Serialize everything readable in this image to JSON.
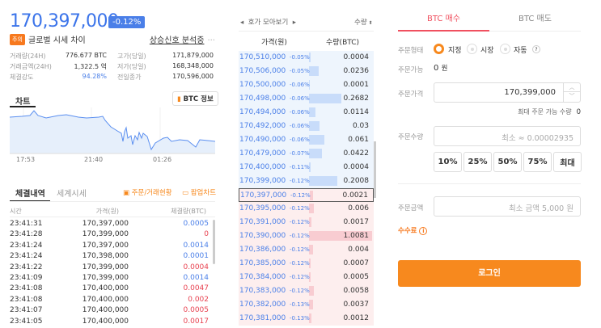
{
  "ticker": {
    "price": "170,397,000",
    "change": "-0.12%",
    "warn_badge": "주의",
    "warn_text": "글로벌 시세 차이",
    "signal_link": "상승신호 분석중",
    "more": "···"
  },
  "stats": [
    {
      "label": "거래량(24H)",
      "value": "776.677 BTC"
    },
    {
      "label": "거래금액(24H)",
      "value": "1,322.5 억"
    },
    {
      "label": "체결강도",
      "value": "94.28%"
    },
    {
      "label": "고가(당일)",
      "value": "171,879,000"
    },
    {
      "label": "저가(당일)",
      "value": "168,348,000"
    },
    {
      "label": "전일종가",
      "value": "170,596,000"
    }
  ],
  "chart": {
    "tab": "차트",
    "info_button": "BTC 정보",
    "x_ticks": [
      "17:53",
      "21:40",
      "01:26"
    ],
    "line_color": "#5b8ff0",
    "fill_color": "#e6effb"
  },
  "trades": {
    "tabs": [
      "체결내역",
      "세계시세"
    ],
    "links": [
      "주문/거래현황",
      "팝업차트"
    ],
    "headers": [
      "시간",
      "가격(원)",
      "체결량(BTC)"
    ],
    "rows": [
      {
        "time": "23:41:31",
        "price": "170,397,000",
        "qty": "0.0005",
        "side": "buy"
      },
      {
        "time": "23:41:28",
        "price": "170,399,000",
        "qty": "0",
        "side": "sell"
      },
      {
        "time": "23:41:24",
        "price": "170,397,000",
        "qty": "0.0014",
        "side": "buy"
      },
      {
        "time": "23:41:24",
        "price": "170,398,000",
        "qty": "0.0001",
        "side": "buy"
      },
      {
        "time": "23:41:22",
        "price": "170,399,000",
        "qty": "0.0004",
        "side": "sell"
      },
      {
        "time": "23:41:09",
        "price": "170,399,000",
        "qty": "0.0014",
        "side": "buy"
      },
      {
        "time": "23:41:08",
        "price": "170,400,000",
        "qty": "0.0047",
        "side": "sell"
      },
      {
        "time": "23:41:08",
        "price": "170,400,000",
        "qty": "0.002",
        "side": "sell"
      },
      {
        "time": "23:41:07",
        "price": "170,400,000",
        "qty": "0.0005",
        "side": "sell"
      },
      {
        "time": "23:41:05",
        "price": "170,400,000",
        "qty": "0.0017",
        "side": "sell"
      }
    ]
  },
  "orderbook": {
    "nav_label": "호가 모아보기",
    "sort_label": "수량",
    "headers": [
      "가격(원)",
      "수량(BTC)"
    ],
    "asks": [
      {
        "price": "170,510,000",
        "pct": "-0.05%",
        "qty": "0.0004"
      },
      {
        "price": "170,506,000",
        "pct": "-0.05%",
        "qty": "0.0236"
      },
      {
        "price": "170,500,000",
        "pct": "-0.06%",
        "qty": "0.0001"
      },
      {
        "price": "170,498,000",
        "pct": "-0.06%",
        "qty": "0.2682"
      },
      {
        "price": "170,494,000",
        "pct": "-0.06%",
        "qty": "0.0114"
      },
      {
        "price": "170,492,000",
        "pct": "-0.06%",
        "qty": "0.03"
      },
      {
        "price": "170,490,000",
        "pct": "-0.06%",
        "qty": "0.061"
      },
      {
        "price": "170,479,000",
        "pct": "-0.07%",
        "qty": "0.0422"
      },
      {
        "price": "170,400,000",
        "pct": "-0.11%",
        "qty": "0.0004"
      },
      {
        "price": "170,399,000",
        "pct": "-0.12%",
        "qty": "0.2008"
      }
    ],
    "bids": [
      {
        "price": "170,397,000",
        "pct": "-0.12%",
        "qty": "0.0021",
        "current": true
      },
      {
        "price": "170,395,000",
        "pct": "-0.12%",
        "qty": "0.006"
      },
      {
        "price": "170,391,000",
        "pct": "-0.12%",
        "qty": "0.0017"
      },
      {
        "price": "170,390,000",
        "pct": "-0.12%",
        "qty": "1.0081"
      },
      {
        "price": "170,386,000",
        "pct": "-0.12%",
        "qty": "0.004"
      },
      {
        "price": "170,385,000",
        "pct": "-0.12%",
        "qty": "0.0007"
      },
      {
        "price": "170,384,000",
        "pct": "-0.12%",
        "qty": "0.0005"
      },
      {
        "price": "170,383,000",
        "pct": "-0.12%",
        "qty": "0.0058"
      },
      {
        "price": "170,382,000",
        "pct": "-0.13%",
        "qty": "0.0037"
      },
      {
        "price": "170,381,000",
        "pct": "-0.13%",
        "qty": "0.0012"
      }
    ]
  },
  "order": {
    "tabs": [
      "BTC 매수",
      "BTC 매도"
    ],
    "type_label": "주문형태",
    "types": [
      "지정",
      "시장",
      "자동"
    ],
    "help": "?",
    "avail_label": "주문가능",
    "avail_value": "0",
    "avail_unit": "원",
    "price_label": "주문가격",
    "price_value": "170,399,000",
    "max_label": "최대 주문 가능 수량",
    "max_value": "0",
    "qty_label": "주문수량",
    "qty_placeholder": "최소 ≈ 0.00002935",
    "pct_buttons": [
      "10%",
      "25%",
      "50%",
      "75%",
      "최대"
    ],
    "amount_label": "주문금액",
    "amount_placeholder": "최소 금액 5,000 원",
    "fee_label": "수수료",
    "login": "로그인",
    "accent": "#f7891e",
    "buy_color": "#f0505f"
  }
}
